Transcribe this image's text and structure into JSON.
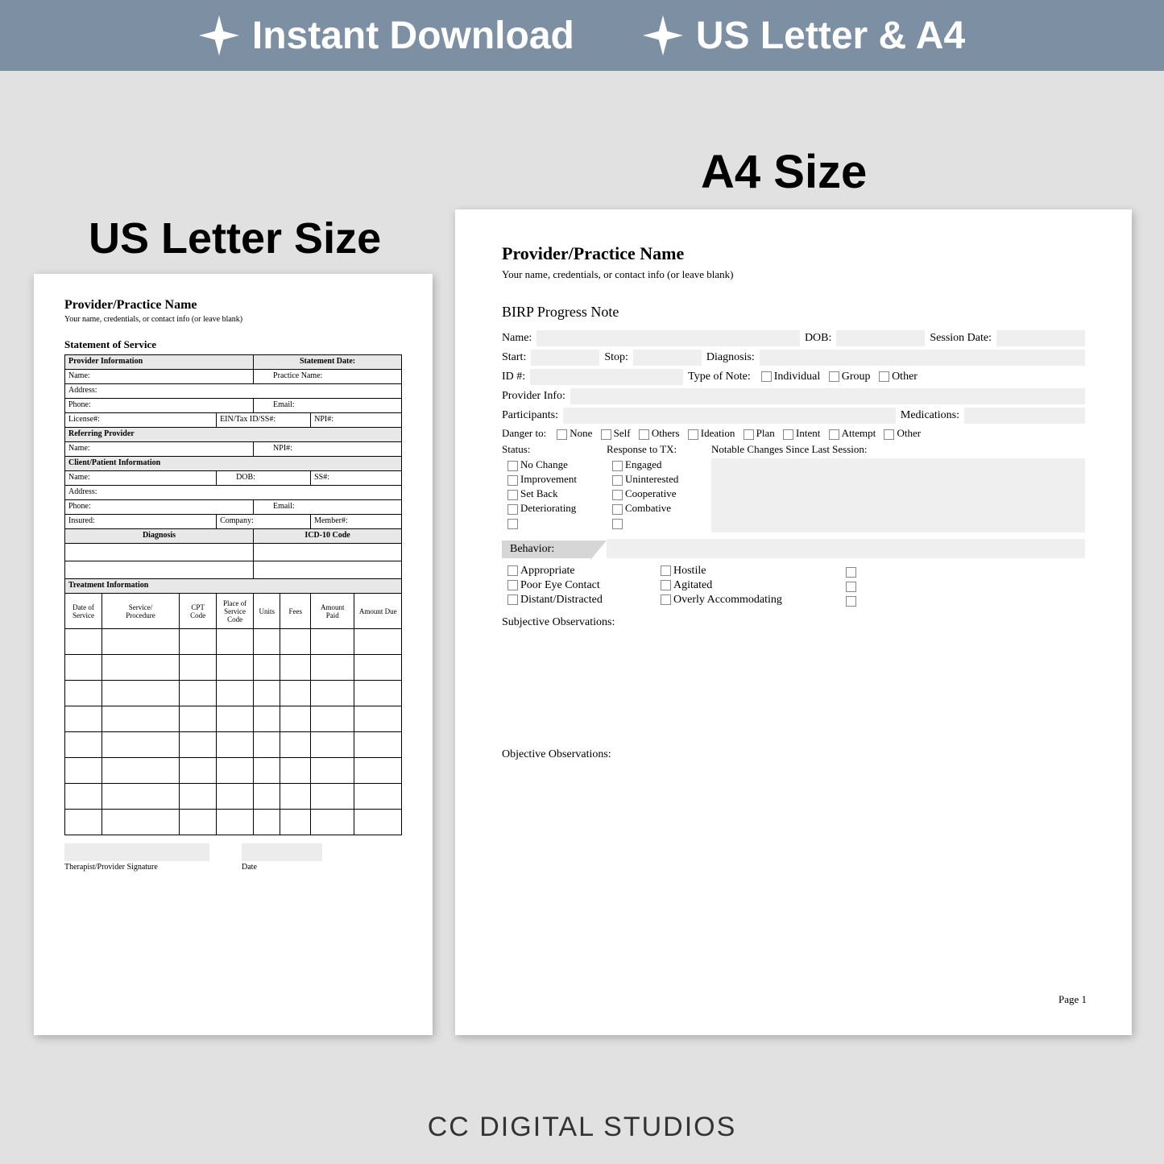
{
  "banner": {
    "item1": "Instant Download",
    "item2": "US Letter & A4"
  },
  "labels": {
    "left": "US Letter Size",
    "right": "A4 Size"
  },
  "footer": "CC DIGITAL STUDIOS",
  "colors": {
    "banner_bg": "#7d8fa3",
    "page_bg": "#e1e1e1",
    "field_bg": "#efefef",
    "header_bg": "#e8e8e8"
  },
  "leftPage": {
    "title": "Provider/Practice Name",
    "subtitle": "Your name, credentials, or contact info (or leave blank)",
    "section": "Statement of Service",
    "rows": {
      "provider_info": "Provider Information",
      "statement_date": "Statement Date:",
      "name": "Name:",
      "practice_name": "Practice Name:",
      "address": "Address:",
      "phone": "Phone:",
      "email": "Email:",
      "license": "License#:",
      "ein": "EIN/Tax ID/SS#:",
      "npi": "NPI#:",
      "referring": "Referring Provider",
      "client_info": "Client/Patient Information",
      "dob": "DOB:",
      "ss": "SS#:",
      "insured": "Insured:",
      "company": "Company:",
      "member": "Member#:",
      "diagnosis": "Diagnosis",
      "icd": "ICD-10 Code",
      "treatment": "Treatment Information"
    },
    "treatCols": [
      "Date of Service",
      "Service/\nProcedure",
      "CPT Code",
      "Place of Service Code",
      "Units",
      "Fees",
      "Amount Paid",
      "Amount Due"
    ],
    "sig": "Therapist/Provider Signature",
    "date": "Date"
  },
  "rightPage": {
    "title": "Provider/Practice Name",
    "subtitle": "Your name, credentials, or contact info (or leave blank)",
    "section": "BIRP Progress Note",
    "fields": {
      "name": "Name:",
      "dob": "DOB:",
      "session_date": "Session Date:",
      "start": "Start:",
      "stop": "Stop:",
      "diagnosis": "Diagnosis:",
      "id": "ID #:",
      "type_of_note": "Type of Note:",
      "provider_info": "Provider Info:",
      "participants": "Participants:",
      "medications": "Medications:",
      "danger_to": "Danger to:"
    },
    "noteTypes": [
      "Individual",
      "Group",
      "Other"
    ],
    "dangerOpts": [
      "None",
      "Self",
      "Others",
      "Ideation",
      "Plan",
      "Intent",
      "Attempt",
      "Other"
    ],
    "statusHead": "Status:",
    "responseHead": "Response to TX:",
    "notableHead": "Notable Changes Since Last Session:",
    "statusOpts": [
      "No Change",
      "Improvement",
      "Set Back",
      "Deteriorating",
      ""
    ],
    "responseOpts": [
      "Engaged",
      "Uninterested",
      "Cooperative",
      "Combative",
      ""
    ],
    "behaviorTab": "Behavior:",
    "behaviorCol1": [
      "Appropriate",
      "Poor Eye Contact",
      "Distant/Distracted"
    ],
    "behaviorCol2": [
      "Hostile",
      "Agitated",
      "Overly Accommodating"
    ],
    "subjObs": "Subjective Observations:",
    "objObs": "Objective Observations:",
    "pageNum": "Page 1"
  }
}
